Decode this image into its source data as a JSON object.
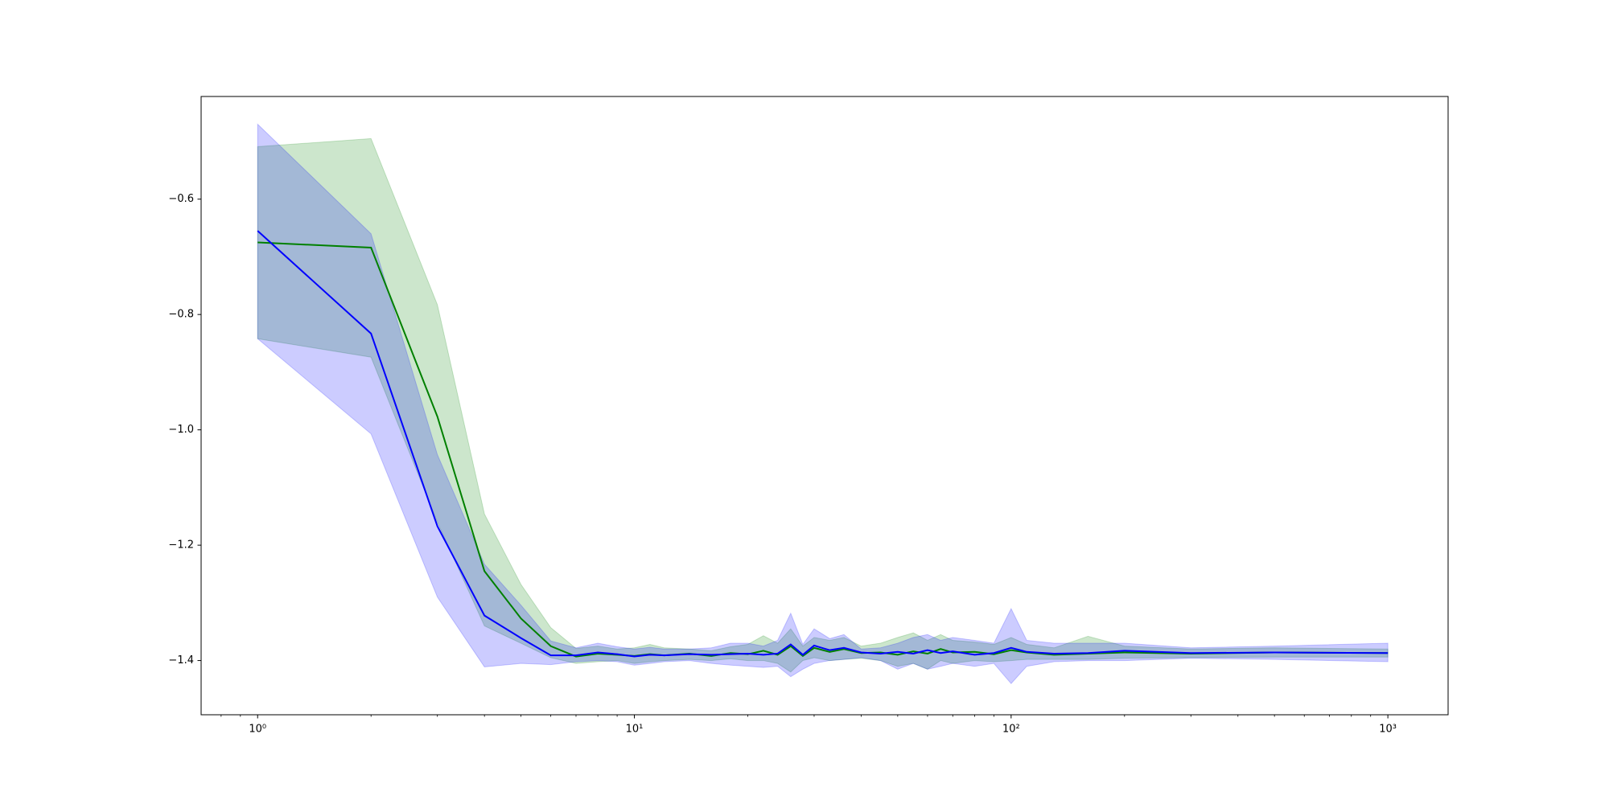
{
  "chart_data": {
    "type": "line",
    "xscale": "log",
    "x": [
      1,
      2,
      3,
      4,
      5,
      6,
      7,
      8,
      9,
      10,
      11,
      12,
      14,
      16,
      18,
      20,
      22,
      24,
      26,
      28,
      30,
      33,
      36,
      40,
      45,
      50,
      55,
      60,
      65,
      70,
      80,
      90,
      100,
      110,
      130,
      160,
      200,
      300,
      500,
      1000
    ],
    "series": [
      {
        "color": "#008000",
        "values": [
          -0.675,
          -0.684,
          -0.977,
          -1.245,
          -1.327,
          -1.375,
          -1.393,
          -1.388,
          -1.39,
          -1.392,
          -1.389,
          -1.391,
          -1.388,
          -1.392,
          -1.387,
          -1.389,
          -1.383,
          -1.39,
          -1.375,
          -1.392,
          -1.378,
          -1.385,
          -1.38,
          -1.387,
          -1.386,
          -1.39,
          -1.384,
          -1.388,
          -1.38,
          -1.386,
          -1.385,
          -1.389,
          -1.382,
          -1.386,
          -1.39,
          -1.388,
          -1.386,
          -1.388,
          -1.386,
          -1.387
        ],
        "upper": [
          -0.509,
          -0.495,
          -0.783,
          -1.146,
          -1.268,
          -1.343,
          -1.379,
          -1.375,
          -1.38,
          -1.378,
          -1.372,
          -1.378,
          -1.38,
          -1.383,
          -1.376,
          -1.372,
          -1.357,
          -1.37,
          -1.345,
          -1.375,
          -1.36,
          -1.365,
          -1.36,
          -1.375,
          -1.37,
          -1.36,
          -1.352,
          -1.365,
          -1.355,
          -1.365,
          -1.368,
          -1.372,
          -1.36,
          -1.372,
          -1.378,
          -1.358,
          -1.375,
          -1.38,
          -1.378,
          -1.38
        ],
        "lower": [
          -0.842,
          -0.874,
          -1.16,
          -1.34,
          -1.37,
          -1.395,
          -1.405,
          -1.402,
          -1.4,
          -1.405,
          -1.402,
          -1.4,
          -1.398,
          -1.4,
          -1.397,
          -1.4,
          -1.4,
          -1.405,
          -1.42,
          -1.4,
          -1.395,
          -1.4,
          -1.398,
          -1.396,
          -1.4,
          -1.41,
          -1.405,
          -1.415,
          -1.4,
          -1.405,
          -1.4,
          -1.402,
          -1.4,
          -1.398,
          -1.398,
          -1.398,
          -1.396,
          -1.395,
          -1.394,
          -1.394
        ]
      },
      {
        "color": "#0000ff",
        "values": [
          -0.655,
          -0.833,
          -1.167,
          -1.322,
          -1.361,
          -1.391,
          -1.391,
          -1.386,
          -1.389,
          -1.393,
          -1.39,
          -1.391,
          -1.389,
          -1.39,
          -1.389,
          -1.388,
          -1.39,
          -1.388,
          -1.372,
          -1.39,
          -1.374,
          -1.382,
          -1.378,
          -1.386,
          -1.388,
          -1.385,
          -1.388,
          -1.382,
          -1.387,
          -1.384,
          -1.39,
          -1.387,
          -1.378,
          -1.385,
          -1.388,
          -1.387,
          -1.383,
          -1.387,
          -1.386,
          -1.387
        ],
        "upper": [
          -0.47,
          -0.66,
          -1.043,
          -1.233,
          -1.304,
          -1.366,
          -1.378,
          -1.37,
          -1.376,
          -1.38,
          -1.377,
          -1.38,
          -1.38,
          -1.378,
          -1.37,
          -1.37,
          -1.375,
          -1.365,
          -1.318,
          -1.372,
          -1.345,
          -1.362,
          -1.355,
          -1.38,
          -1.378,
          -1.37,
          -1.36,
          -1.355,
          -1.365,
          -1.36,
          -1.365,
          -1.37,
          -1.31,
          -1.365,
          -1.37,
          -1.37,
          -1.37,
          -1.378,
          -1.375,
          -1.37
        ],
        "lower": [
          -0.842,
          -1.007,
          -1.29,
          -1.411,
          -1.405,
          -1.407,
          -1.402,
          -1.4,
          -1.402,
          -1.408,
          -1.405,
          -1.402,
          -1.4,
          -1.405,
          -1.408,
          -1.41,
          -1.412,
          -1.41,
          -1.428,
          -1.415,
          -1.405,
          -1.4,
          -1.398,
          -1.395,
          -1.4,
          -1.415,
          -1.405,
          -1.415,
          -1.41,
          -1.405,
          -1.41,
          -1.405,
          -1.44,
          -1.41,
          -1.402,
          -1.4,
          -1.4,
          -1.396,
          -1.398,
          -1.402
        ]
      }
    ],
    "xlim": [
      0.708,
      1445
    ],
    "ylim": [
      -1.494,
      -0.422
    ],
    "xticks": [
      {
        "value": 1,
        "label": "10⁰"
      },
      {
        "value": 10,
        "label": "10¹"
      },
      {
        "value": 100,
        "label": "10²"
      },
      {
        "value": 1000,
        "label": "10³"
      }
    ],
    "yticks": [
      {
        "value": -1.4,
        "label": "−1.4"
      },
      {
        "value": -1.2,
        "label": "−1.2"
      },
      {
        "value": -1.0,
        "label": "−1.0"
      },
      {
        "value": -0.8,
        "label": "−0.8"
      },
      {
        "value": -0.6,
        "label": "−0.6"
      }
    ],
    "band_opacity": 0.2,
    "grid": false
  }
}
